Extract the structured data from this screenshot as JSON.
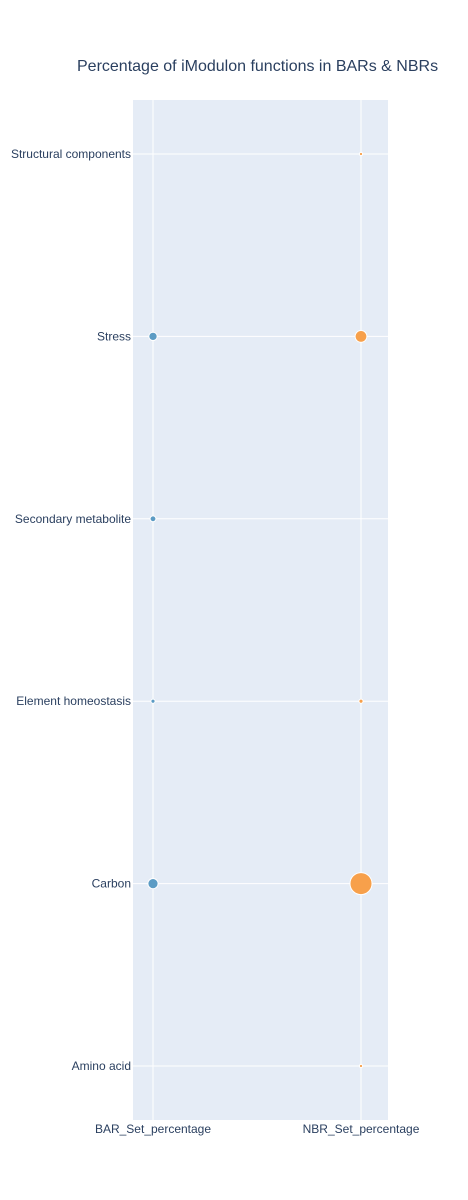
{
  "chart_data": {
    "type": "scatter",
    "title": "Percentage of iModulon functions in BARs & NBRs",
    "categories_x": [
      "BAR_Set_percentage",
      "NBR_Set_percentage"
    ],
    "categories_y": [
      "Amino acid",
      "Carbon",
      "Element homeostasis",
      "Secondary metabolite",
      "Stress",
      "Structural components"
    ],
    "series": [
      {
        "name": "BAR_Set_percentage",
        "color": "#5b9bc4",
        "values": [
          0,
          3.0,
          0.5,
          1.0,
          2.0,
          0
        ]
      },
      {
        "name": "NBR_Set_percentage",
        "color": "#f7a04b",
        "values": [
          0.3,
          14.0,
          0.5,
          0,
          4.0,
          0.3
        ]
      }
    ],
    "background": "#e5ecf6",
    "grid_color": "#ffffff"
  }
}
